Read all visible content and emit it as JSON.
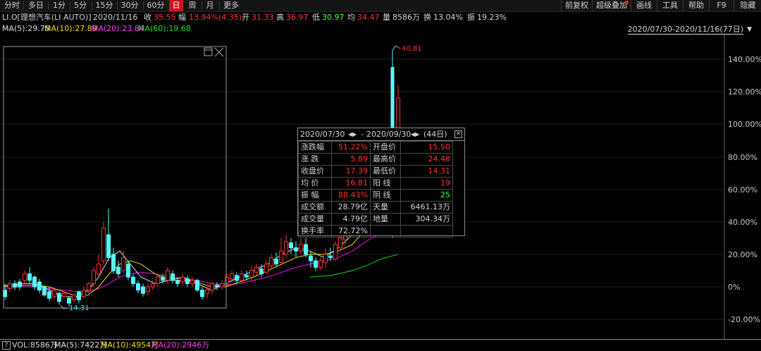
{
  "toolbar": {
    "periods": [
      "分时",
      "多日",
      "1分",
      "5分",
      "15分",
      "30分",
      "60分",
      "日",
      "周",
      "月",
      "更多"
    ],
    "active_period": "日",
    "right_items": [
      "前复权",
      "超级叠加",
      "画线",
      "工具",
      "帮助",
      "F9",
      "隐藏"
    ]
  },
  "info": {
    "ticker": "LI.O[理想汽车(LI AUTO)]",
    "date": "2020/11/16",
    "close_label": "收",
    "close": "35.55",
    "change_label": "幅",
    "change": "13.94%(4.35)",
    "open_label": "开",
    "open": "31.33",
    "high_label": "高",
    "high": "36.97",
    "low_label": "低",
    "low": "30.97",
    "avg_label": "均",
    "avg": "34.47",
    "volume_label": "量",
    "volume": "8586万",
    "turnover_label": "换",
    "turnover": "13.04%",
    "amplitude_label": "振",
    "amplitude": "19.23%"
  },
  "ma_legend": {
    "ma5": "MA(5):29.75",
    "ma10": "MA(10):27.89",
    "ma20": "MA(20):23.84",
    "ma60": "MA(60):19.68"
  },
  "range_label": "2020/07/30-2020/11/16(77日)",
  "range_dropdown": "▼",
  "axis": {
    "y_ticks": [
      "140.00%",
      "120.00%",
      "100.00%",
      "80.00%",
      "60.00%",
      "40.00%",
      "20.00%",
      "0%",
      "-20.00%"
    ]
  },
  "annotations": {
    "high": "40.81",
    "low": "14.31"
  },
  "popup": {
    "start": "2020/07/30",
    "end": "2020/09/30",
    "sep": "-",
    "days": "(44日)",
    "rows": [
      {
        "k1": "涨跌幅",
        "v1": "51.22%",
        "k2": "开盘价",
        "v2": "15.50"
      },
      {
        "k1": "涨  跌",
        "v1": "5.89",
        "k2": "最高价",
        "v2": "24.48"
      },
      {
        "k1": "收盘价",
        "v1": "17.39",
        "k2": "最低价",
        "v2": "14.31"
      },
      {
        "k1": "均  价",
        "v1": "16.81",
        "k2": "阳  线",
        "v2": "19"
      },
      {
        "k1": "振  幅",
        "v1": "88.43%",
        "k2": "阴  线",
        "v2": "25"
      },
      {
        "k1": "成交额",
        "v1": "28.79亿",
        "k2": "天量",
        "v2": "6461.13万"
      },
      {
        "k1": "成交量",
        "v1": "4.79亿",
        "k2": "地量",
        "v2": "304.34万"
      },
      {
        "k1": "换手率",
        "v1": "72.72%",
        "k2": "",
        "v2": ""
      }
    ]
  },
  "volume_bar": {
    "help": "?",
    "vol": "VOL:8586万",
    "ma5": "MA(5):7422万",
    "ma10": "MA(10):4954万",
    "ma20": "MA(20):2946万"
  },
  "colors": {
    "up": "#ff3232",
    "down": "#54ffff",
    "ma5": "#e0e0e0",
    "ma10": "#f0e000",
    "ma20": "#ff00ff",
    "ma60": "#00e000",
    "active_tab": "#c8161e"
  }
}
